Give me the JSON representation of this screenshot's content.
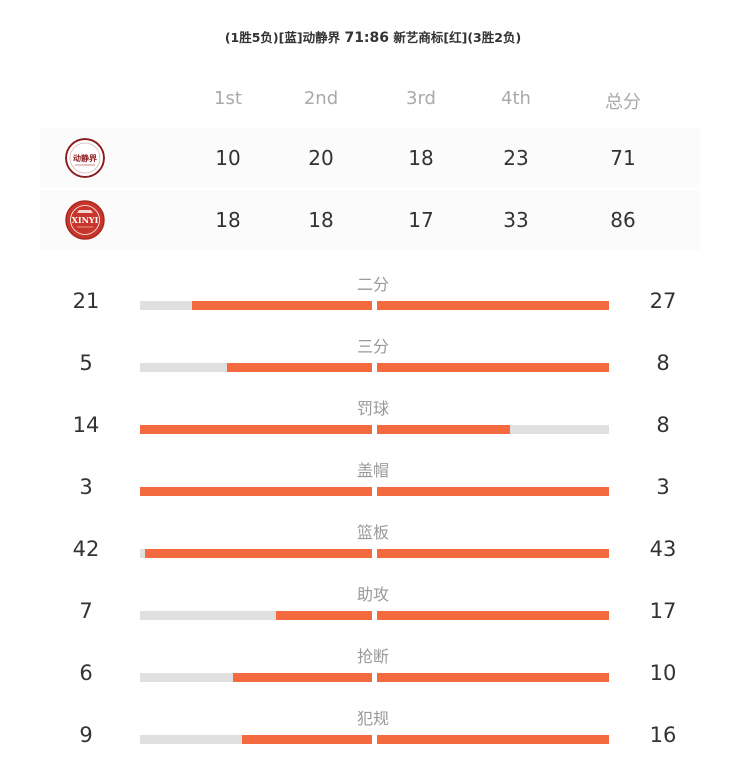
{
  "header": {
    "team1_record": "(1胜5负)",
    "team1_color_tag": "[蓝]",
    "team1_name": "动静界",
    "score": "71:86",
    "team2_name": "新艺商标",
    "team2_color_tag": "[红]",
    "team2_record": "(3胜2负)"
  },
  "quarters": {
    "headers": [
      "1st",
      "2nd",
      "3rd",
      "4th",
      "总分"
    ],
    "rows": [
      {
        "team": "动静界",
        "logo_text": "动静界",
        "scores": [
          "10",
          "20",
          "18",
          "23",
          "71"
        ]
      },
      {
        "team": "新艺商标",
        "logo_text": "XINYI",
        "scores": [
          "18",
          "18",
          "17",
          "33",
          "86"
        ]
      }
    ]
  },
  "stats": [
    {
      "label": "二分",
      "left": 21,
      "right": 27
    },
    {
      "label": "三分",
      "left": 5,
      "right": 8
    },
    {
      "label": "罚球",
      "left": 14,
      "right": 8
    },
    {
      "label": "盖帽",
      "left": 3,
      "right": 3
    },
    {
      "label": "篮板",
      "left": 42,
      "right": 43
    },
    {
      "label": "助攻",
      "left": 7,
      "right": 17
    },
    {
      "label": "抢断",
      "left": 6,
      "right": 10
    },
    {
      "label": "犯规",
      "left": 9,
      "right": 16
    }
  ],
  "colors": {
    "bar_fill": "#f26a3d",
    "bar_track": "#e0e0e0",
    "team1_logo": "#8b1a1a",
    "team2_logo": "#c8352a"
  }
}
